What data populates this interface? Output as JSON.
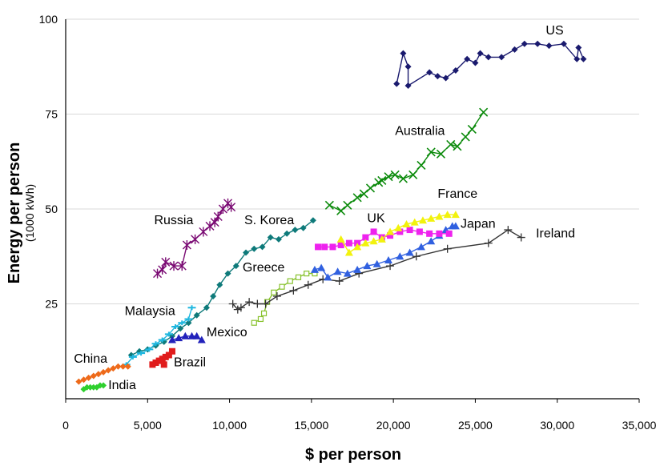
{
  "chart_data": {
    "type": "scatter",
    "xlabel": "$ per person",
    "ylabel": "Energy per person",
    "ylabel_sub": "(1000 kWh)",
    "xlim": [
      0,
      35000
    ],
    "ylim": [
      0,
      100
    ],
    "x_ticks": [
      0,
      5000,
      10000,
      15000,
      20000,
      25000,
      30000,
      35000
    ],
    "x_tick_labels": [
      "0",
      "5,000",
      "10,000",
      "15,000",
      "20,000",
      "25,000",
      "30,000",
      "35,000"
    ],
    "y_ticks": [
      25,
      50,
      75,
      100
    ],
    "y_tick_labels": [
      "25",
      "50",
      "75",
      "100"
    ],
    "grid": true,
    "series": [
      {
        "name": "US",
        "color": "#1a1a6e",
        "marker": "diamond",
        "label": {
          "text": "US",
          "x": 29300,
          "y": 96
        },
        "points": [
          [
            20200,
            83
          ],
          [
            20600,
            91
          ],
          [
            20900,
            87.5
          ],
          [
            20900,
            82.5
          ],
          [
            22200,
            86
          ],
          [
            22700,
            85
          ],
          [
            23200,
            84.5
          ],
          [
            23800,
            86.5
          ],
          [
            24500,
            89.5
          ],
          [
            25000,
            88.5
          ],
          [
            25300,
            91
          ],
          [
            25800,
            90
          ],
          [
            26600,
            90
          ],
          [
            27400,
            92
          ],
          [
            28000,
            93.5
          ],
          [
            28800,
            93.5
          ],
          [
            29500,
            93
          ],
          [
            30400,
            93.5
          ],
          [
            31200,
            89.5
          ],
          [
            31300,
            92.5
          ],
          [
            31600,
            89.5
          ]
        ]
      },
      {
        "name": "Australia",
        "color": "#0b8a0b",
        "marker": "x",
        "label": {
          "text": "Australia",
          "x": 20100,
          "y": 69.5
        },
        "points": [
          [
            16100,
            51
          ],
          [
            16800,
            49.5
          ],
          [
            17200,
            51
          ],
          [
            17800,
            53
          ],
          [
            18200,
            54
          ],
          [
            18600,
            55.5
          ],
          [
            19100,
            57
          ],
          [
            19300,
            57.5
          ],
          [
            19700,
            58.5
          ],
          [
            20100,
            59
          ],
          [
            20600,
            58
          ],
          [
            21200,
            59
          ],
          [
            21700,
            61.5
          ],
          [
            22300,
            65
          ],
          [
            22900,
            64.5
          ],
          [
            23500,
            67
          ],
          [
            23900,
            66.5
          ],
          [
            24400,
            69
          ],
          [
            24800,
            71
          ],
          [
            25500,
            75.5
          ]
        ]
      },
      {
        "name": "Russia",
        "color": "#7a0a73",
        "marker": "asterisk",
        "label": {
          "text": "Russia",
          "x": 5400,
          "y": 46
        },
        "points": [
          [
            5600,
            33
          ],
          [
            5900,
            34
          ],
          [
            6100,
            36
          ],
          [
            6600,
            35
          ],
          [
            7100,
            35
          ],
          [
            7400,
            40.5
          ],
          [
            7900,
            42
          ],
          [
            8400,
            44
          ],
          [
            8800,
            45.5
          ],
          [
            9100,
            46.5
          ],
          [
            9300,
            48
          ],
          [
            9600,
            50
          ],
          [
            9900,
            51.5
          ],
          [
            10100,
            50.5
          ]
        ]
      },
      {
        "name": "S. Korea",
        "color": "#0e7a7a",
        "marker": "diamond",
        "label": {
          "text": "S. Korea",
          "x": 10900,
          "y": 46
        },
        "points": [
          [
            4000,
            11.5
          ],
          [
            4500,
            12.5
          ],
          [
            5000,
            13
          ],
          [
            5500,
            14
          ],
          [
            6000,
            15
          ],
          [
            6500,
            16.5
          ],
          [
            7000,
            18.5
          ],
          [
            7500,
            20
          ],
          [
            8000,
            22
          ],
          [
            8600,
            24
          ],
          [
            9000,
            27
          ],
          [
            9400,
            30
          ],
          [
            9900,
            33
          ],
          [
            10400,
            35
          ],
          [
            11000,
            38.5
          ],
          [
            11500,
            39.5
          ],
          [
            12000,
            40
          ],
          [
            12500,
            42.5
          ],
          [
            13000,
            42
          ],
          [
            13500,
            43.5
          ],
          [
            14000,
            44.5
          ],
          [
            14500,
            45
          ],
          [
            15100,
            47
          ]
        ]
      },
      {
        "name": "Malaysia",
        "color": "#1fb7df",
        "marker": "dash",
        "label": {
          "text": "Malaysia",
          "x": 3600,
          "y": 22
        },
        "points": [
          [
            3700,
            9
          ],
          [
            4100,
            11
          ],
          [
            4600,
            12
          ],
          [
            5100,
            13
          ],
          [
            5500,
            14.5
          ],
          [
            5900,
            15.5
          ],
          [
            6300,
            17
          ],
          [
            6700,
            19
          ],
          [
            7100,
            20
          ],
          [
            7500,
            21
          ],
          [
            7700,
            24
          ]
        ]
      },
      {
        "name": "Mexico",
        "color": "#2222bb",
        "marker": "triangle",
        "label": {
          "text": "Mexico",
          "x": 8600,
          "y": 16.5
        },
        "points": [
          [
            6500,
            15.5
          ],
          [
            6900,
            16
          ],
          [
            7300,
            16.5
          ],
          [
            7700,
            16.5
          ],
          [
            8000,
            16.5
          ],
          [
            8300,
            15.5
          ]
        ]
      },
      {
        "name": "China",
        "color": "#ee6a1a",
        "marker": "diamond",
        "label": {
          "text": "China",
          "x": 500,
          "y": 9.5
        },
        "points": [
          [
            800,
            4.5
          ],
          [
            1100,
            5
          ],
          [
            1400,
            5.5
          ],
          [
            1700,
            6
          ],
          [
            2000,
            6.5
          ],
          [
            2300,
            7
          ],
          [
            2600,
            7.5
          ],
          [
            2900,
            8
          ],
          [
            3200,
            8.5
          ],
          [
            3500,
            8.5
          ],
          [
            3800,
            8.5
          ]
        ]
      },
      {
        "name": "India",
        "color": "#2ed02e",
        "marker": "diamond",
        "label": {
          "text": "India",
          "x": 2600,
          "y": 2.5
        },
        "points": [
          [
            1100,
            2.5
          ],
          [
            1300,
            3
          ],
          [
            1500,
            3
          ],
          [
            1700,
            3
          ],
          [
            1900,
            3
          ],
          [
            2100,
            3.5
          ],
          [
            2300,
            3.5
          ]
        ]
      },
      {
        "name": "Brazil",
        "color": "#e01b1b",
        "marker": "square",
        "label": {
          "text": "Brazil",
          "x": 6600,
          "y": 8.5
        },
        "points": [
          [
            5300,
            9
          ],
          [
            5500,
            9.5
          ],
          [
            5700,
            10
          ],
          [
            5900,
            10.5
          ],
          [
            6000,
            9
          ],
          [
            6100,
            11
          ],
          [
            6300,
            11.5
          ],
          [
            6500,
            12.5
          ]
        ]
      },
      {
        "name": "Greece",
        "color": "#88c22e",
        "marker": "open-square",
        "label": {
          "text": "Greece",
          "x": 10800,
          "y": 33.5
        },
        "points": [
          [
            11500,
            20
          ],
          [
            11900,
            21
          ],
          [
            12100,
            22.5
          ],
          [
            12300,
            25.5
          ],
          [
            12700,
            28
          ],
          [
            13200,
            29.5
          ],
          [
            13700,
            31
          ],
          [
            14200,
            32
          ],
          [
            14700,
            33
          ],
          [
            15200,
            33
          ]
        ]
      },
      {
        "name": "Ireland",
        "color": "#333333",
        "marker": "plus",
        "label": {
          "text": "Ireland",
          "x": 28700,
          "y": 42.5
        },
        "points": [
          [
            10200,
            25
          ],
          [
            10500,
            23.5
          ],
          [
            10700,
            24
          ],
          [
            11200,
            25.5
          ],
          [
            11700,
            25
          ],
          [
            12200,
            25
          ],
          [
            12900,
            27
          ],
          [
            13900,
            28.5
          ],
          [
            14800,
            30
          ],
          [
            15700,
            31.5
          ],
          [
            16700,
            31
          ],
          [
            17900,
            33
          ],
          [
            19800,
            35
          ],
          [
            21400,
            37.5
          ],
          [
            23300,
            39.5
          ],
          [
            25800,
            41
          ],
          [
            27000,
            44.5
          ],
          [
            27800,
            42.5
          ]
        ]
      },
      {
        "name": "Japan",
        "color": "#3060e0",
        "marker": "triangle",
        "label": {
          "text": "Japan",
          "x": 24100,
          "y": 45
        },
        "points": [
          [
            15200,
            34
          ],
          [
            15600,
            34.5
          ],
          [
            16000,
            32
          ],
          [
            16600,
            33.5
          ],
          [
            17200,
            33
          ],
          [
            17800,
            34
          ],
          [
            18400,
            35
          ],
          [
            19000,
            35.5
          ],
          [
            19700,
            36.5
          ],
          [
            20400,
            37.5
          ],
          [
            21000,
            38.5
          ],
          [
            21700,
            40
          ],
          [
            22300,
            41.5
          ],
          [
            22800,
            43
          ],
          [
            23200,
            44.5
          ],
          [
            23600,
            45.5
          ],
          [
            23800,
            45.5
          ]
        ]
      },
      {
        "name": "UK",
        "color": "#ee22ee",
        "marker": "square",
        "label": {
          "text": "UK",
          "x": 18400,
          "y": 46.5
        },
        "points": [
          [
            15400,
            40
          ],
          [
            15800,
            40
          ],
          [
            16300,
            40
          ],
          [
            16800,
            40.5
          ],
          [
            17300,
            41
          ],
          [
            17800,
            41
          ],
          [
            18300,
            42.5
          ],
          [
            18800,
            44
          ],
          [
            19300,
            42.5
          ],
          [
            19800,
            43
          ],
          [
            20400,
            44
          ],
          [
            21000,
            44.5
          ],
          [
            21600,
            44
          ],
          [
            22200,
            43.5
          ],
          [
            22800,
            43.5
          ],
          [
            23400,
            43.5
          ]
        ]
      },
      {
        "name": "France",
        "color": "#f2f20d",
        "marker": "triangle",
        "label": {
          "text": "France",
          "x": 22700,
          "y": 53
        },
        "points": [
          [
            16800,
            42
          ],
          [
            17300,
            38.5
          ],
          [
            17800,
            40
          ],
          [
            18300,
            41
          ],
          [
            18800,
            41.5
          ],
          [
            19300,
            42
          ],
          [
            19800,
            44
          ],
          [
            20300,
            45
          ],
          [
            20800,
            46
          ],
          [
            21300,
            46.5
          ],
          [
            21800,
            47
          ],
          [
            22300,
            47.5
          ],
          [
            22800,
            48
          ],
          [
            23300,
            48.5
          ],
          [
            23800,
            48.5
          ]
        ]
      }
    ]
  }
}
